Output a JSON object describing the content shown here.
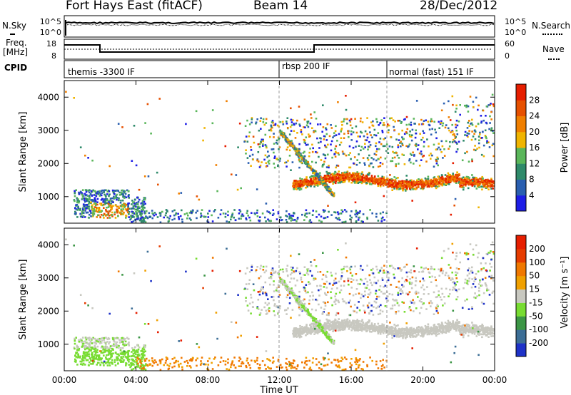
{
  "header": {
    "title": "Fort Hays East (fitACF)",
    "beam": "Beam 14",
    "date": "28/Dec/2012"
  },
  "panels": {
    "nsky": {
      "left_label": "N.Sky",
      "left_ticks": [
        "10^5",
        "10^0"
      ],
      "right_label": "N.Search",
      "right_ticks": [
        "10^5",
        "10^0"
      ]
    },
    "freq": {
      "left_label_lines": [
        "Freq.",
        "[MHz]"
      ],
      "left_ticks": [
        "18",
        "8"
      ],
      "right_label": "Nave",
      "right_ticks": [
        "60",
        "0"
      ]
    },
    "cpid": {
      "label": "CPID",
      "segments": [
        {
          "name": "themis -3300 IF",
          "start_hour": 0
        },
        {
          "name": "rbsp 200 IF",
          "start_hour": 12
        },
        {
          "name": "normal (fast) 151 IF",
          "start_hour": 18
        }
      ]
    }
  },
  "chart_data": [
    {
      "type": "heatmap",
      "name": "power",
      "ylabel": "Slant Range [km]",
      "y_ticks": [
        "1000",
        "2000",
        "3000",
        "4000"
      ],
      "ylim": [
        200,
        4500
      ],
      "xlim_hours": [
        0,
        24
      ],
      "colorbar": {
        "label": "Power [dB]",
        "tick_labels": [
          "4",
          "8",
          "12",
          "16",
          "20",
          "24",
          "28"
        ],
        "colors": [
          "#1e1ee6",
          "#2a5fb0",
          "#2f8a6a",
          "#5ab65a",
          "#f0b400",
          "#f07f00",
          "#e65000",
          "#e61e00"
        ],
        "range": [
          0,
          32
        ]
      },
      "features": [
        {
          "region": "early morning echoes",
          "hours": [
            0.5,
            4.5
          ],
          "range_km": [
            300,
            1300
          ],
          "power_db": [
            8,
            24
          ]
        },
        {
          "region": "post-noon band",
          "hours": [
            12,
            24
          ],
          "range_km": [
            800,
            3300
          ],
          "power_db": [
            12,
            30
          ]
        }
      ]
    },
    {
      "type": "heatmap",
      "name": "velocity",
      "ylabel": "Slant Range [km]",
      "y_ticks": [
        "1000",
        "2000",
        "3000",
        "4000"
      ],
      "ylim": [
        200,
        4500
      ],
      "xlim_hours": [
        0,
        24
      ],
      "colorbar": {
        "label": "Velocity [m s⁻¹]",
        "tick_labels": [
          "200",
          "100",
          "50",
          "15",
          "-15",
          "-50",
          "-100",
          "-200"
        ],
        "colors": [
          "#1e32c8",
          "#3c6e96",
          "#3c9646",
          "#78dc32",
          "#c8c8c0",
          "#f0a000",
          "#f07800",
          "#e63c00",
          "#e61e00"
        ]
      }
    }
  ],
  "x_axis": {
    "label": "Time UT",
    "tick_labels": [
      "00:00",
      "04:00",
      "08:00",
      "12:00",
      "16:00",
      "20:00",
      "00:00"
    ]
  },
  "colors": {
    "power_low": "#1e1ee6",
    "power_high": "#e61e00",
    "velocity_ground": "#c8c8c0",
    "velocity_toward": "#78dc32",
    "velocity_away": "#f08c00"
  }
}
